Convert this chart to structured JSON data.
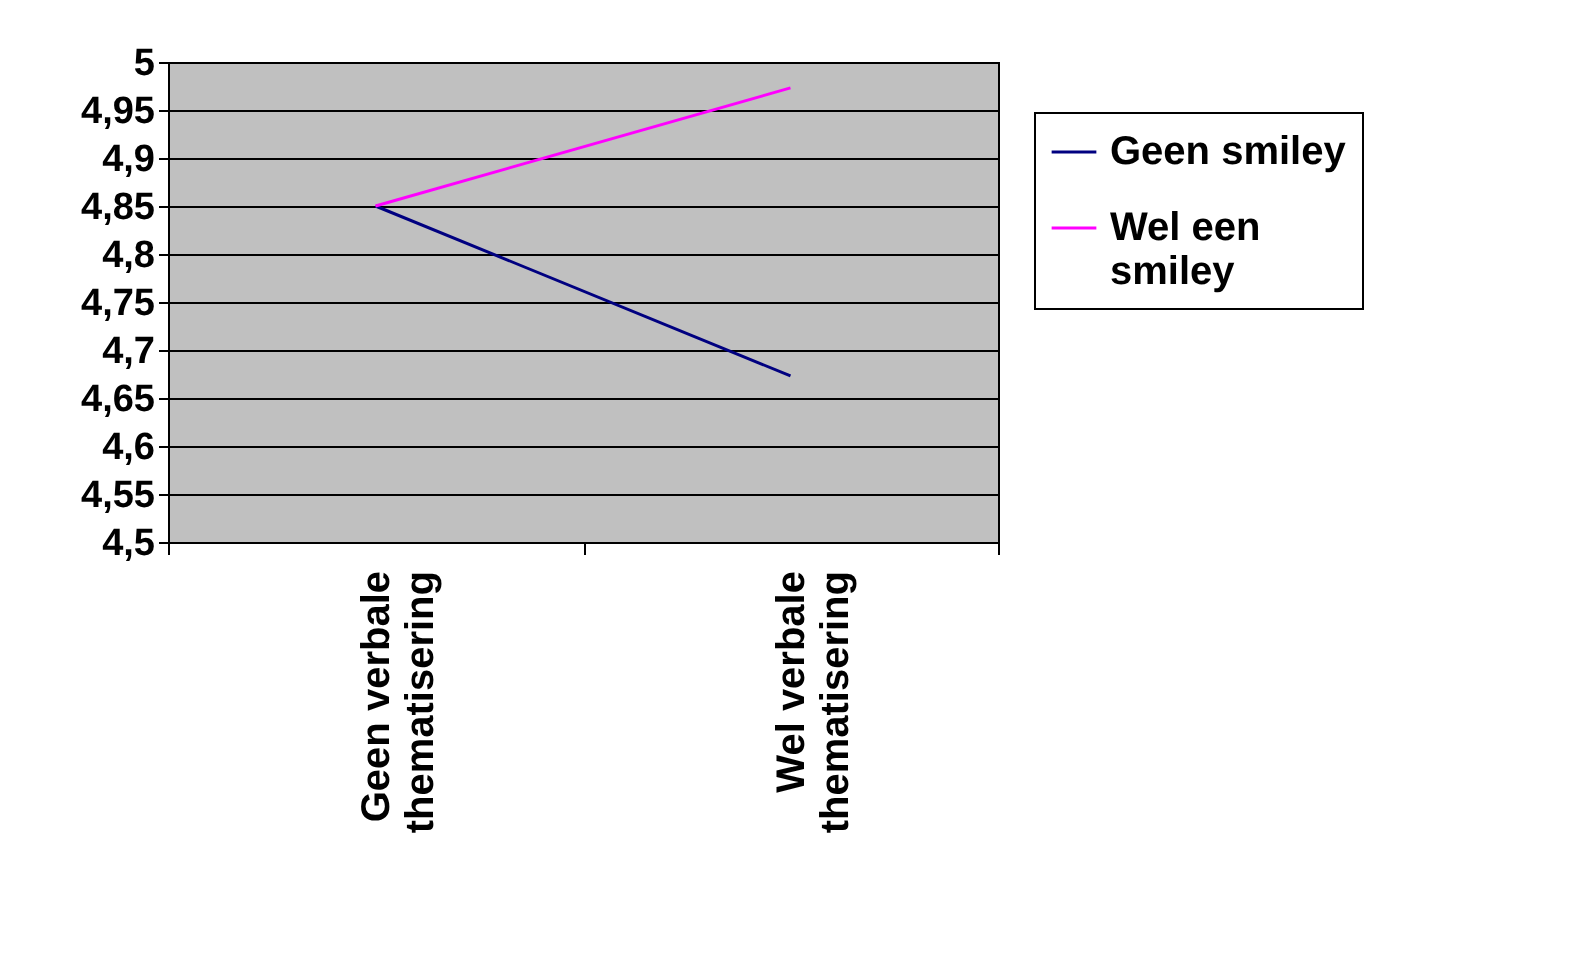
{
  "chart_data": {
    "type": "line",
    "categories": [
      "Geen verbale thematisering",
      "Wel verbale thematisering"
    ],
    "series": [
      {
        "name": "Geen smiley",
        "color": "#000080",
        "values": [
          4.85,
          4.673
        ]
      },
      {
        "name": "Wel een smiley",
        "color": "#ff00ff",
        "values": [
          4.85,
          4.973
        ]
      }
    ],
    "ylim": [
      4.5,
      5
    ],
    "yticks": [
      {
        "value": 4.5,
        "label": "4,5"
      },
      {
        "value": 4.55,
        "label": "4,55"
      },
      {
        "value": 4.6,
        "label": "4,6"
      },
      {
        "value": 4.65,
        "label": "4,65"
      },
      {
        "value": 4.7,
        "label": "4,7"
      },
      {
        "value": 4.75,
        "label": "4,75"
      },
      {
        "value": 4.8,
        "label": "4,8"
      },
      {
        "value": 4.85,
        "label": "4,85"
      },
      {
        "value": 4.9,
        "label": "4,9"
      },
      {
        "value": 4.95,
        "label": "4,95"
      },
      {
        "value": 5,
        "label": "5"
      }
    ],
    "grid": "y",
    "legend": "right",
    "marker": "none",
    "line_style": "solid"
  }
}
